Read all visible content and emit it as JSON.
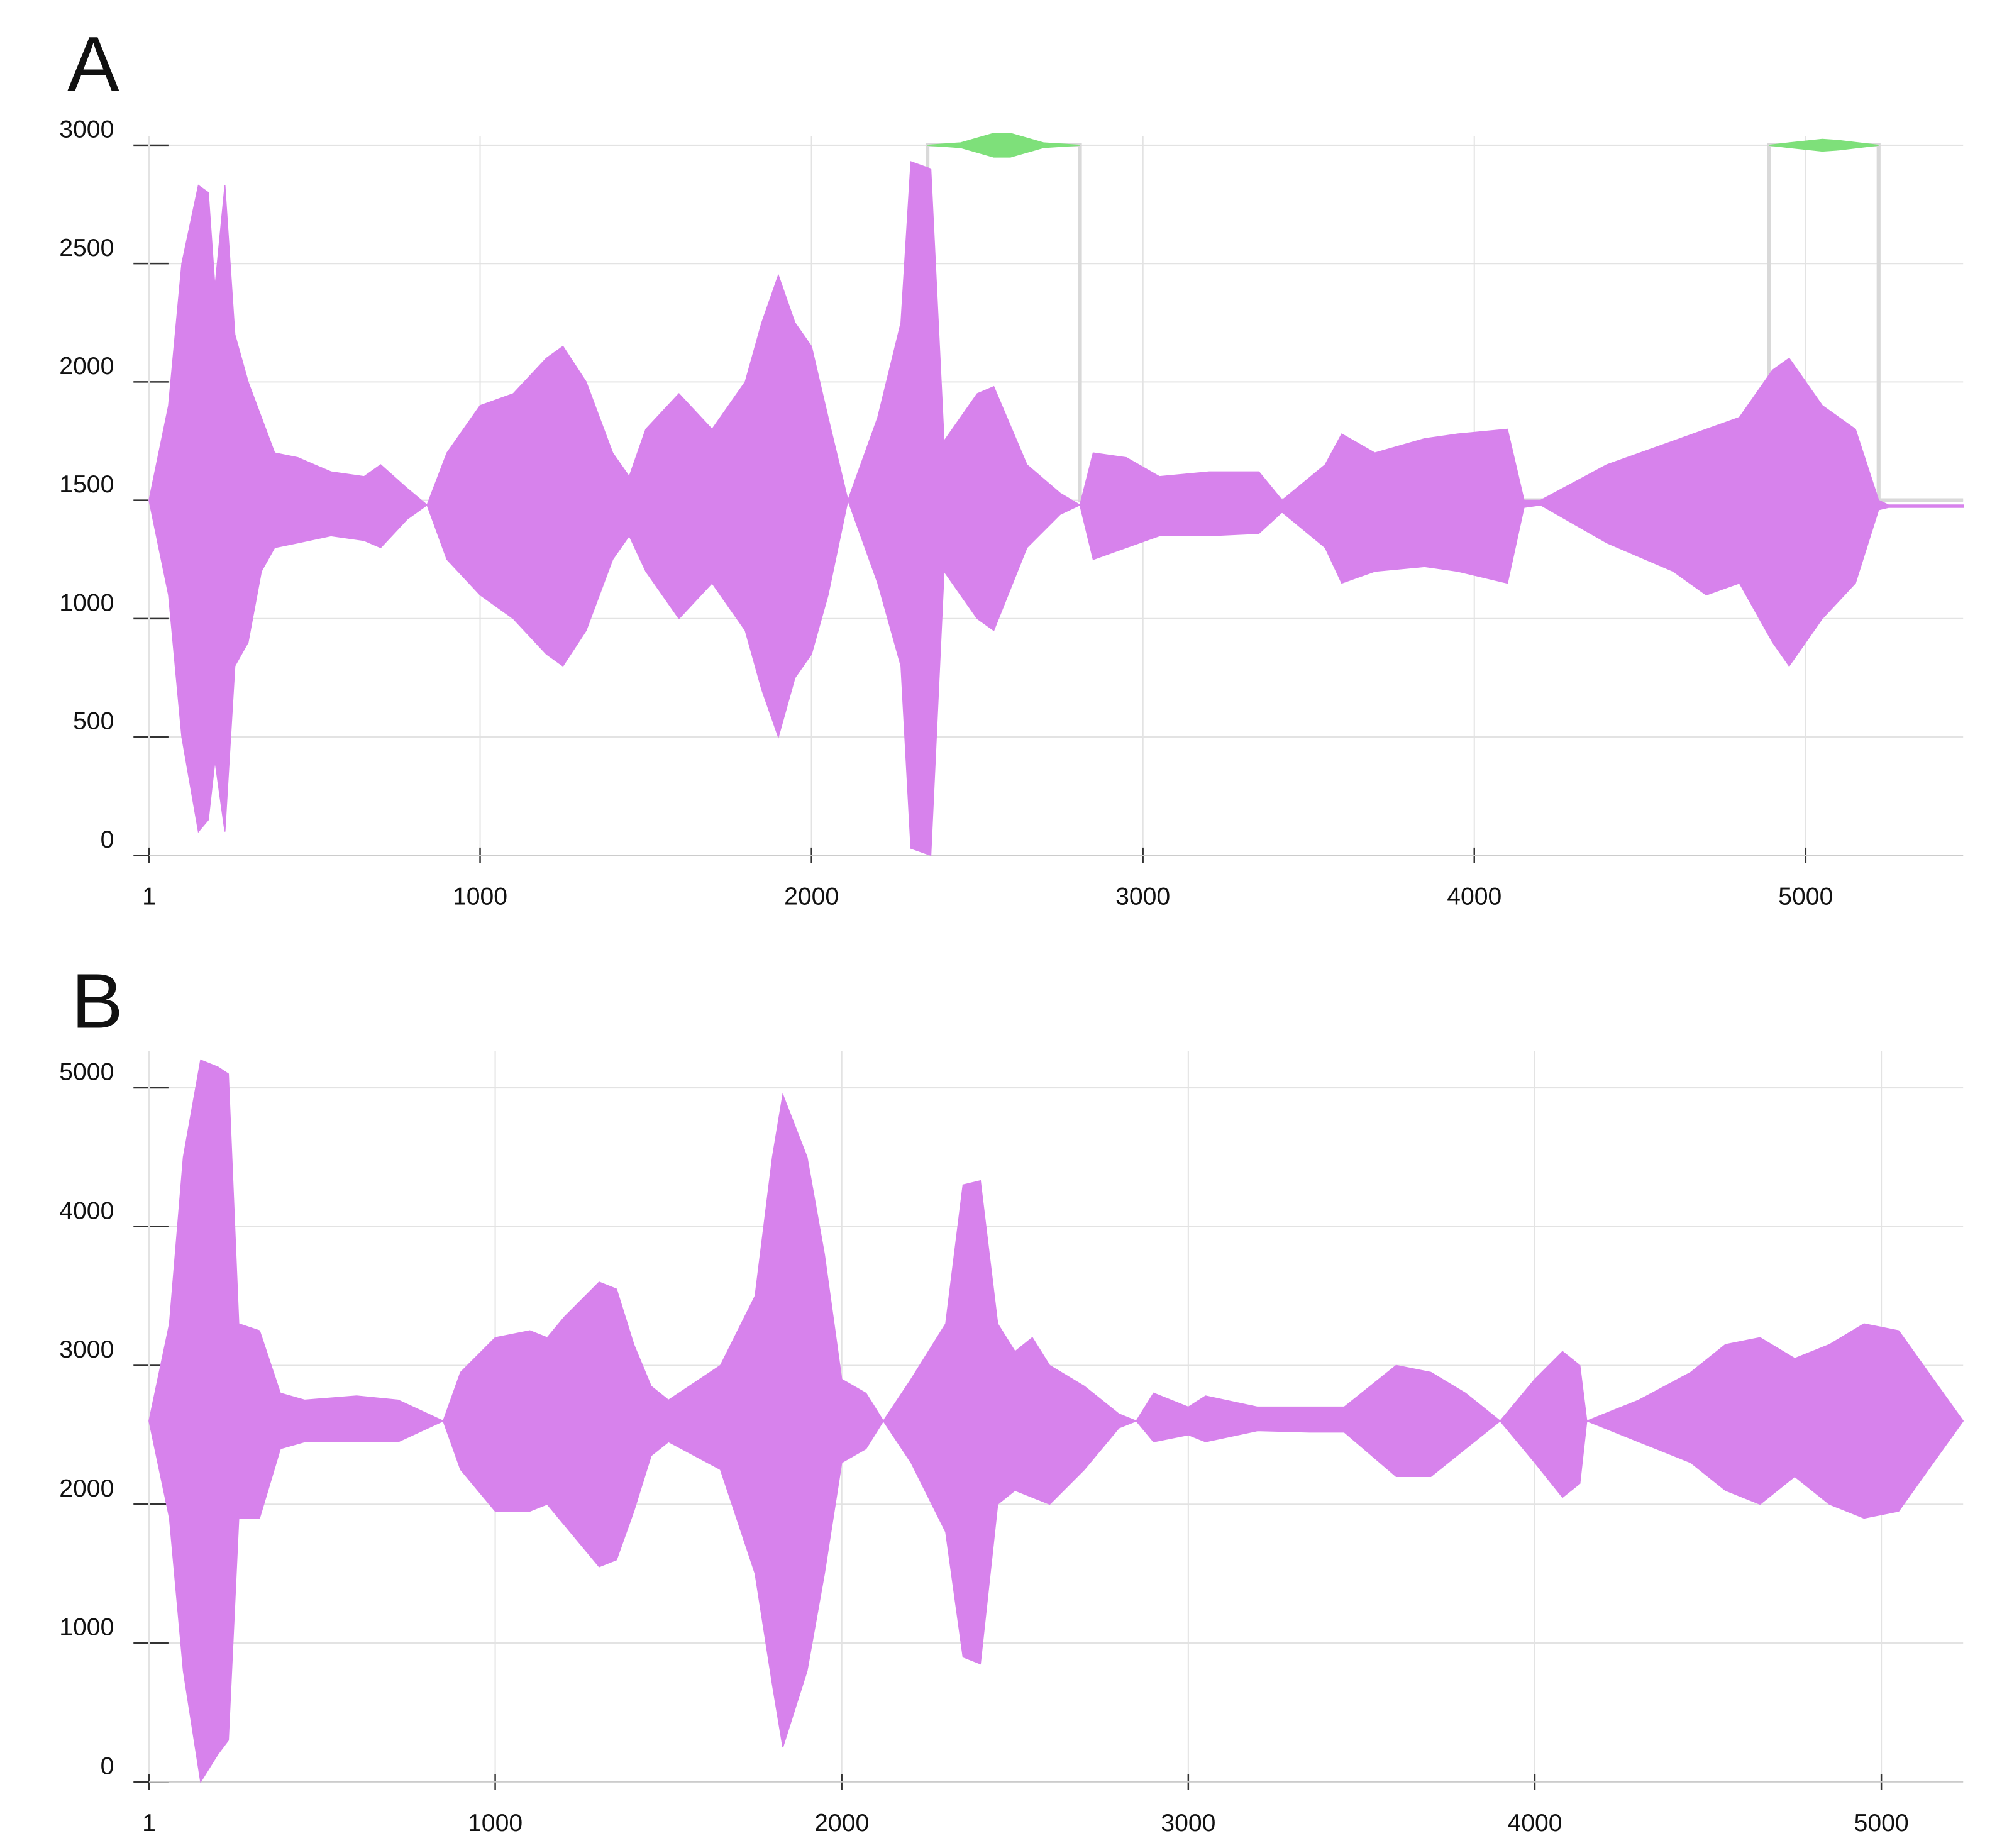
{
  "chart_data": [
    {
      "type": "band",
      "title": "A",
      "color": "#d782ec",
      "xlim": [
        1,
        5475
      ],
      "ylim": [
        0,
        3000
      ],
      "xticks": [
        1,
        1000,
        2000,
        3000,
        4000,
        5000
      ],
      "yticks": [
        0,
        500,
        1000,
        1500,
        2000,
        2500,
        3000
      ],
      "grid": true,
      "x": [
        1,
        60,
        100,
        150,
        180,
        200,
        230,
        260,
        300,
        340,
        380,
        450,
        550,
        650,
        700,
        780,
        840,
        900,
        1000,
        1100,
        1200,
        1250,
        1320,
        1400,
        1450,
        1500,
        1600,
        1700,
        1800,
        1850,
        1900,
        1950,
        2000,
        2050,
        2110,
        2200,
        2270,
        2300,
        2360,
        2400,
        2500,
        2550,
        2650,
        2750,
        2810,
        2850,
        2950,
        3050,
        3200,
        3350,
        3420,
        3550,
        3600,
        3700,
        3850,
        3950,
        4100,
        4150,
        4200,
        4400,
        4600,
        4700,
        4800,
        4900,
        4950,
        5050,
        5150,
        5220,
        5250,
        5475
      ],
      "upper": [
        1500,
        1900,
        2500,
        2830,
        2800,
        2400,
        2830,
        2200,
        2000,
        1850,
        1700,
        1680,
        1620,
        1600,
        1650,
        1550,
        1480,
        1700,
        1900,
        1950,
        2100,
        2150,
        2000,
        1700,
        1600,
        1800,
        1950,
        1800,
        2000,
        2250,
        2450,
        2250,
        2150,
        1850,
        1500,
        1850,
        2250,
        2930,
        2900,
        1750,
        1950,
        1980,
        1650,
        1530,
        1480,
        1700,
        1680,
        1600,
        1620,
        1620,
        1500,
        1650,
        1780,
        1700,
        1760,
        1780,
        1800,
        1500,
        1500,
        1650,
        1750,
        1800,
        1850,
        2050,
        2100,
        1900,
        1800,
        1500,
        1480,
        1480
      ],
      "lower": [
        1500,
        1100,
        500,
        100,
        150,
        400,
        100,
        800,
        900,
        1200,
        1300,
        1320,
        1350,
        1330,
        1300,
        1420,
        1480,
        1250,
        1100,
        1000,
        850,
        800,
        950,
        1250,
        1350,
        1200,
        1000,
        1150,
        950,
        700,
        500,
        750,
        850,
        1100,
        1500,
        1150,
        800,
        30,
        0,
        1200,
        1000,
        950,
        1300,
        1440,
        1480,
        1250,
        1300,
        1350,
        1350,
        1360,
        1450,
        1300,
        1150,
        1200,
        1220,
        1200,
        1150,
        1470,
        1480,
        1320,
        1200,
        1100,
        1150,
        900,
        800,
        1000,
        1150,
        1460,
        1470,
        1470
      ],
      "overlays": [
        {
          "type": "line",
          "color": "#d9d9d9",
          "x": [
            2350,
            2350,
            2810,
            2810,
            4890,
            4890,
            5220,
            5220,
            5475
          ],
          "y": [
            1500,
            3000,
            3000,
            1500,
            1500,
            3000,
            3000,
            1500,
            1500
          ]
        },
        {
          "type": "band",
          "color": "#7ee07a",
          "x": [
            2350,
            2450,
            2550,
            2600,
            2700,
            2810
          ],
          "upper": [
            3000,
            3010,
            3050,
            3050,
            3010,
            3000
          ],
          "lower": [
            3000,
            2990,
            2950,
            2950,
            2990,
            3000
          ]
        },
        {
          "type": "band",
          "color": "#7ee07a",
          "x": [
            4890,
            4950,
            5050,
            5100,
            5220
          ],
          "upper": [
            3000,
            3010,
            3025,
            3020,
            3000
          ],
          "lower": [
            3000,
            2990,
            2975,
            2980,
            3000
          ]
        }
      ]
    },
    {
      "type": "band",
      "title": "B",
      "color": "#d782ec",
      "xlim": [
        1,
        5236
      ],
      "ylim": [
        0,
        5200
      ],
      "xticks": [
        1,
        1000,
        2000,
        3000,
        4000,
        5000
      ],
      "yticks": [
        0,
        1000,
        2000,
        3000,
        4000,
        5000
      ],
      "grid": true,
      "x": [
        1,
        60,
        100,
        150,
        200,
        230,
        260,
        320,
        380,
        450,
        600,
        720,
        850,
        900,
        1000,
        1100,
        1150,
        1200,
        1300,
        1350,
        1400,
        1450,
        1500,
        1650,
        1750,
        1800,
        1830,
        1900,
        1950,
        2000,
        2070,
        2120,
        2200,
        2300,
        2350,
        2400,
        2450,
        2500,
        2550,
        2600,
        2700,
        2800,
        2850,
        2900,
        3000,
        3050,
        3200,
        3350,
        3450,
        3600,
        3700,
        3800,
        3900,
        4000,
        4080,
        4130,
        4150,
        4300,
        4450,
        4550,
        4650,
        4750,
        4850,
        4950,
        5050,
        5150,
        5236
      ],
      "upper": [
        2600,
        3300,
        4500,
        5200,
        5150,
        5100,
        3300,
        3250,
        2800,
        2750,
        2780,
        2750,
        2600,
        2950,
        3200,
        3250,
        3200,
        3350,
        3600,
        3550,
        3150,
        2850,
        2750,
        3000,
        3500,
        4500,
        4950,
        4500,
        3800,
        2900,
        2800,
        2600,
        2900,
        3300,
        4300,
        4330,
        3300,
        3100,
        3200,
        3000,
        2850,
        2650,
        2600,
        2800,
        2700,
        2780,
        2700,
        2700,
        2700,
        3000,
        2950,
        2800,
        2600,
        2900,
        3100,
        3000,
        2600,
        2750,
        2950,
        3150,
        3200,
        3050,
        3150,
        3300,
        3250,
        2900,
        2600
      ],
      "lower": [
        2600,
        1900,
        800,
        0,
        200,
        300,
        1900,
        1900,
        2400,
        2450,
        2450,
        2450,
        2600,
        2250,
        1950,
        1950,
        2000,
        1850,
        1550,
        1600,
        1950,
        2350,
        2450,
        2250,
        1500,
        700,
        250,
        800,
        1500,
        2300,
        2400,
        2600,
        2300,
        1800,
        900,
        850,
        2000,
        2100,
        2050,
        2000,
        2250,
        2550,
        2600,
        2450,
        2500,
        2450,
        2530,
        2520,
        2520,
        2200,
        2200,
        2400,
        2600,
        2300,
        2050,
        2150,
        2600,
        2450,
        2300,
        2100,
        2000,
        2200,
        2000,
        1900,
        1950,
        2300,
        2600
      ]
    }
  ]
}
